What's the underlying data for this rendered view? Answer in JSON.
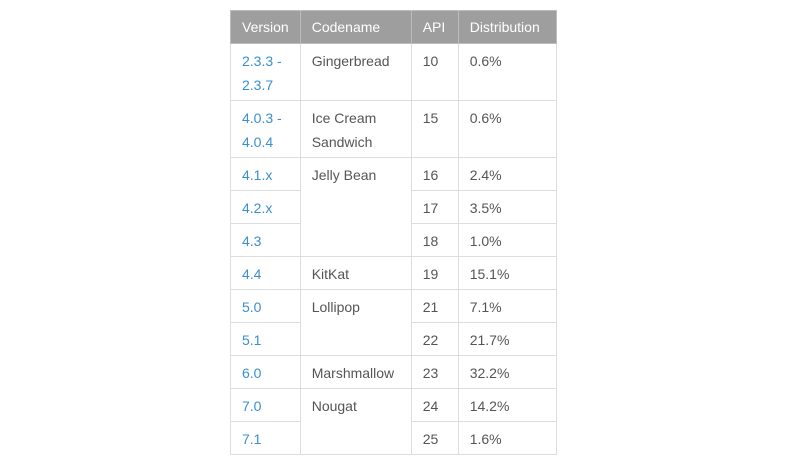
{
  "table": {
    "headers": [
      "Version",
      "Codename",
      "API",
      "Distribution"
    ],
    "rows": [
      {
        "version": "2.3.3 - 2.3.7",
        "version_lines": [
          "2.3.3 -",
          "2.3.7"
        ],
        "codename": "Gingerbread",
        "api": "10",
        "distribution": "0.6%"
      },
      {
        "version": "4.0.3 - 4.0.4",
        "version_lines": [
          "4.0.3 -",
          "4.0.4"
        ],
        "codename": "Ice Cream Sandwich",
        "codename_lines": [
          "Ice Cream",
          "Sandwich"
        ],
        "api": "15",
        "distribution": "0.6%"
      },
      {
        "version": "4.1.x",
        "codename": "Jelly Bean",
        "api": "16",
        "distribution": "2.4%"
      },
      {
        "version": "4.2.x",
        "api": "17",
        "distribution": "3.5%"
      },
      {
        "version": "4.3",
        "api": "18",
        "distribution": "1.0%"
      },
      {
        "version": "4.4",
        "codename": "KitKat",
        "api": "19",
        "distribution": "15.1%"
      },
      {
        "version": "5.0",
        "codename": "Lollipop",
        "api": "21",
        "distribution": "7.1%"
      },
      {
        "version": "5.1",
        "api": "22",
        "distribution": "21.7%"
      },
      {
        "version": "6.0",
        "codename": "Marshmallow",
        "api": "23",
        "distribution": "32.2%"
      },
      {
        "version": "7.0",
        "codename": "Nougat",
        "api": "24",
        "distribution": "14.2%"
      },
      {
        "version": "7.1",
        "api": "25",
        "distribution": "1.6%"
      }
    ]
  },
  "colors": {
    "header_bg": "#9e9e9e",
    "link": "#3a8fcf",
    "text": "#555555"
  }
}
